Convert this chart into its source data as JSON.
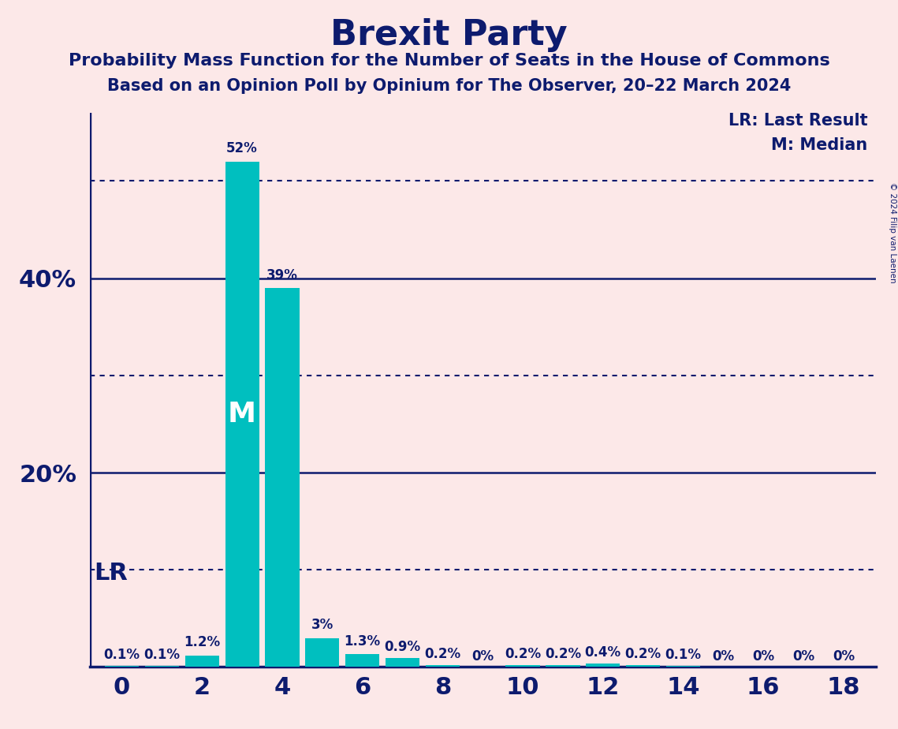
{
  "title": "Brexit Party",
  "subtitle1": "Probability Mass Function for the Number of Seats in the House of Commons",
  "subtitle2": "Based on an Opinion Poll by Opinium for The Observer, 20–22 March 2024",
  "copyright": "© 2024 Filip van Laenen",
  "background_color": "#fce8e8",
  "bar_color": "#00bfbf",
  "title_color": "#0d1b6e",
  "axis_color": "#0d1b6e",
  "label_color": "#0d1b6e",
  "seats": [
    0,
    1,
    2,
    3,
    4,
    5,
    6,
    7,
    8,
    9,
    10,
    11,
    12,
    13,
    14,
    15,
    16,
    17,
    18
  ],
  "probabilities": [
    0.1,
    0.1,
    1.2,
    52,
    39,
    3,
    1.3,
    0.9,
    0.2,
    0,
    0.2,
    0.2,
    0.4,
    0.2,
    0.1,
    0,
    0,
    0,
    0
  ],
  "labels": [
    "0.1%",
    "0.1%",
    "1.2%",
    "52%",
    "39%",
    "3%",
    "1.3%",
    "0.9%",
    "0.2%",
    "0%",
    "0.2%",
    "0.2%",
    "0.4%",
    "0.2%",
    "0.1%",
    "0%",
    "0%",
    "0%",
    "0%"
  ],
  "ylim": [
    0,
    57
  ],
  "xticks": [
    0,
    2,
    4,
    6,
    8,
    10,
    12,
    14,
    16,
    18
  ],
  "median_seat": 3,
  "median_label": "M",
  "lr_label": "LR",
  "legend_lr": "LR: Last Result",
  "legend_m": "M: Median",
  "solid_line_color": "#0d1b6e",
  "dotted_line_color": "#0d1b6e",
  "solid_lines": [
    20,
    40
  ],
  "dotted_lines": [
    10,
    30,
    50
  ],
  "ytick_values": [
    20,
    40
  ],
  "ytick_labels": [
    "20%",
    "40%"
  ]
}
